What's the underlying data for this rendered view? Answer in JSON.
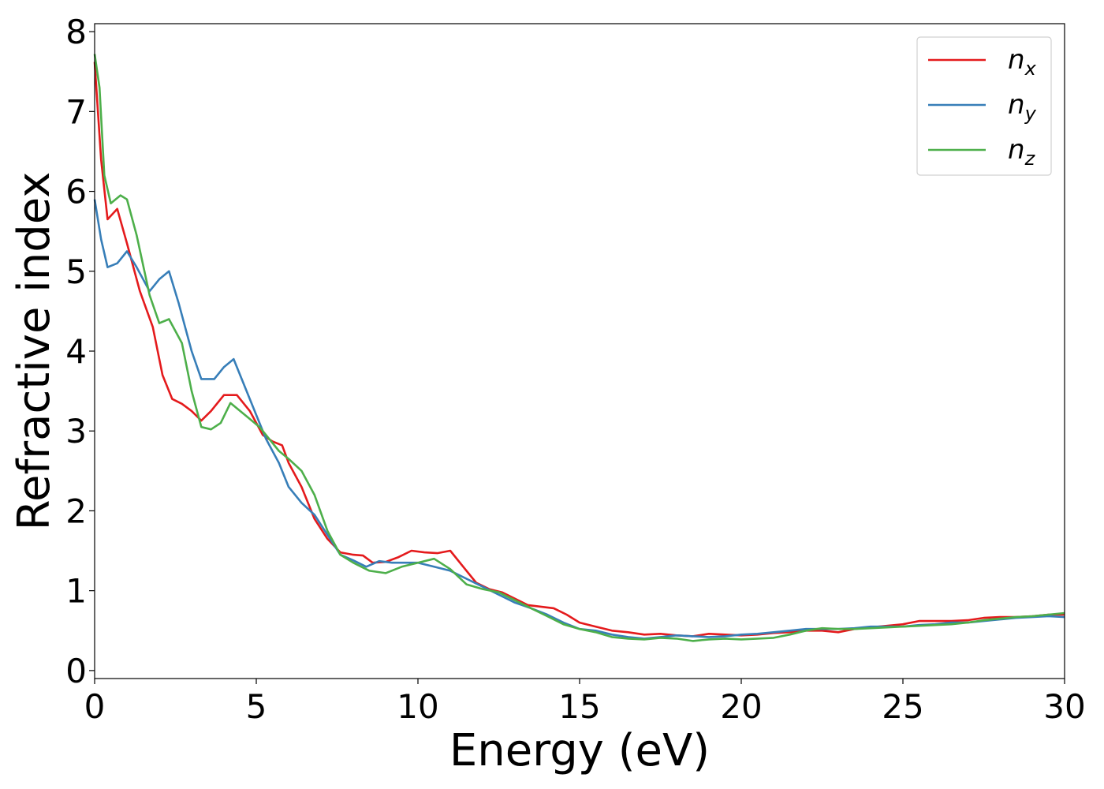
{
  "chart_data": {
    "type": "line",
    "title": "",
    "xlabel": "Energy (eV)",
    "ylabel": "Refractive index",
    "xlim": [
      0,
      30
    ],
    "ylim": [
      -0.1,
      8.1
    ],
    "xticks": [
      0,
      5,
      10,
      15,
      20,
      25,
      30
    ],
    "yticks": [
      0,
      1,
      2,
      3,
      4,
      5,
      6,
      7,
      8
    ],
    "grid": false,
    "legend_position": "top-right",
    "series": [
      {
        "name": "n_x",
        "legend_main": "n",
        "legend_sub": "x",
        "color": "#e41a1c",
        "points": [
          [
            0,
            7.62
          ],
          [
            0.2,
            6.4
          ],
          [
            0.4,
            5.65
          ],
          [
            0.7,
            5.78
          ],
          [
            1.0,
            5.35
          ],
          [
            1.4,
            4.75
          ],
          [
            1.8,
            4.3
          ],
          [
            2.1,
            3.7
          ],
          [
            2.4,
            3.4
          ],
          [
            2.7,
            3.34
          ],
          [
            3.0,
            3.25
          ],
          [
            3.3,
            3.13
          ],
          [
            3.6,
            3.25
          ],
          [
            4.0,
            3.45
          ],
          [
            4.4,
            3.45
          ],
          [
            4.8,
            3.25
          ],
          [
            5.2,
            2.95
          ],
          [
            5.5,
            2.87
          ],
          [
            5.8,
            2.82
          ],
          [
            6.0,
            2.6
          ],
          [
            6.4,
            2.3
          ],
          [
            6.8,
            1.9
          ],
          [
            7.2,
            1.65
          ],
          [
            7.6,
            1.48
          ],
          [
            8.0,
            1.45
          ],
          [
            8.3,
            1.44
          ],
          [
            8.6,
            1.35
          ],
          [
            9.0,
            1.36
          ],
          [
            9.4,
            1.42
          ],
          [
            9.8,
            1.5
          ],
          [
            10.2,
            1.48
          ],
          [
            10.6,
            1.47
          ],
          [
            11.0,
            1.5
          ],
          [
            11.4,
            1.3
          ],
          [
            11.8,
            1.1
          ],
          [
            12.2,
            1.02
          ],
          [
            12.6,
            0.98
          ],
          [
            13.0,
            0.9
          ],
          [
            13.4,
            0.82
          ],
          [
            13.8,
            0.8
          ],
          [
            14.2,
            0.78
          ],
          [
            14.6,
            0.7
          ],
          [
            15.0,
            0.6
          ],
          [
            15.5,
            0.55
          ],
          [
            16.0,
            0.5
          ],
          [
            16.5,
            0.48
          ],
          [
            17.0,
            0.45
          ],
          [
            17.5,
            0.46
          ],
          [
            18.0,
            0.44
          ],
          [
            18.5,
            0.43
          ],
          [
            19.0,
            0.46
          ],
          [
            19.5,
            0.45
          ],
          [
            20.0,
            0.44
          ],
          [
            20.5,
            0.45
          ],
          [
            21.0,
            0.47
          ],
          [
            21.5,
            0.48
          ],
          [
            22.0,
            0.5
          ],
          [
            22.5,
            0.5
          ],
          [
            23.0,
            0.48
          ],
          [
            23.5,
            0.52
          ],
          [
            24.0,
            0.54
          ],
          [
            24.5,
            0.56
          ],
          [
            25.0,
            0.58
          ],
          [
            25.5,
            0.62
          ],
          [
            26.0,
            0.62
          ],
          [
            26.5,
            0.62
          ],
          [
            27.0,
            0.63
          ],
          [
            27.5,
            0.66
          ],
          [
            28.0,
            0.67
          ],
          [
            28.5,
            0.67
          ],
          [
            29.0,
            0.68
          ],
          [
            29.5,
            0.7
          ],
          [
            30.0,
            0.7
          ]
        ]
      },
      {
        "name": "n_y",
        "legend_main": "n",
        "legend_sub": "y",
        "color": "#377eb8",
        "points": [
          [
            0,
            5.9
          ],
          [
            0.2,
            5.4
          ],
          [
            0.4,
            5.05
          ],
          [
            0.7,
            5.1
          ],
          [
            1.0,
            5.25
          ],
          [
            1.3,
            5.05
          ],
          [
            1.7,
            4.75
          ],
          [
            2.0,
            4.9
          ],
          [
            2.3,
            5.0
          ],
          [
            2.6,
            4.6
          ],
          [
            3.0,
            4.0
          ],
          [
            3.3,
            3.65
          ],
          [
            3.7,
            3.65
          ],
          [
            4.0,
            3.8
          ],
          [
            4.3,
            3.9
          ],
          [
            4.6,
            3.6
          ],
          [
            5.0,
            3.2
          ],
          [
            5.3,
            2.9
          ],
          [
            5.7,
            2.6
          ],
          [
            6.0,
            2.3
          ],
          [
            6.4,
            2.1
          ],
          [
            6.8,
            1.95
          ],
          [
            7.2,
            1.7
          ],
          [
            7.6,
            1.45
          ],
          [
            8.0,
            1.38
          ],
          [
            8.4,
            1.3
          ],
          [
            8.8,
            1.37
          ],
          [
            9.2,
            1.35
          ],
          [
            9.6,
            1.35
          ],
          [
            10.0,
            1.35
          ],
          [
            10.5,
            1.3
          ],
          [
            11.0,
            1.25
          ],
          [
            11.5,
            1.15
          ],
          [
            12.0,
            1.05
          ],
          [
            12.5,
            0.95
          ],
          [
            13.0,
            0.85
          ],
          [
            13.5,
            0.78
          ],
          [
            14.0,
            0.7
          ],
          [
            14.5,
            0.6
          ],
          [
            15.0,
            0.52
          ],
          [
            15.5,
            0.5
          ],
          [
            16.0,
            0.45
          ],
          [
            16.5,
            0.42
          ],
          [
            17.0,
            0.4
          ],
          [
            17.5,
            0.42
          ],
          [
            18.0,
            0.44
          ],
          [
            18.5,
            0.43
          ],
          [
            19.0,
            0.42
          ],
          [
            19.5,
            0.43
          ],
          [
            20.0,
            0.45
          ],
          [
            20.5,
            0.46
          ],
          [
            21.0,
            0.48
          ],
          [
            21.5,
            0.5
          ],
          [
            22.0,
            0.52
          ],
          [
            22.5,
            0.52
          ],
          [
            23.0,
            0.52
          ],
          [
            23.5,
            0.53
          ],
          [
            24.0,
            0.55
          ],
          [
            24.5,
            0.55
          ],
          [
            25.0,
            0.55
          ],
          [
            25.5,
            0.57
          ],
          [
            26.0,
            0.58
          ],
          [
            26.5,
            0.6
          ],
          [
            27.0,
            0.6
          ],
          [
            27.5,
            0.62
          ],
          [
            28.0,
            0.64
          ],
          [
            28.5,
            0.66
          ],
          [
            29.0,
            0.67
          ],
          [
            29.5,
            0.68
          ],
          [
            30.0,
            0.67
          ]
        ]
      },
      {
        "name": "n_z",
        "legend_main": "n",
        "legend_sub": "z",
        "color": "#4daf4a",
        "points": [
          [
            0,
            7.72
          ],
          [
            0.15,
            7.3
          ],
          [
            0.3,
            6.2
          ],
          [
            0.5,
            5.85
          ],
          [
            0.8,
            5.95
          ],
          [
            1.0,
            5.9
          ],
          [
            1.3,
            5.45
          ],
          [
            1.7,
            4.7
          ],
          [
            2.0,
            4.35
          ],
          [
            2.3,
            4.4
          ],
          [
            2.7,
            4.1
          ],
          [
            3.0,
            3.5
          ],
          [
            3.3,
            3.05
          ],
          [
            3.6,
            3.02
          ],
          [
            3.9,
            3.1
          ],
          [
            4.2,
            3.35
          ],
          [
            4.5,
            3.25
          ],
          [
            4.8,
            3.15
          ],
          [
            5.1,
            3.05
          ],
          [
            5.4,
            2.9
          ],
          [
            5.7,
            2.75
          ],
          [
            6.0,
            2.65
          ],
          [
            6.4,
            2.5
          ],
          [
            6.8,
            2.2
          ],
          [
            7.2,
            1.75
          ],
          [
            7.6,
            1.45
          ],
          [
            8.0,
            1.35
          ],
          [
            8.5,
            1.25
          ],
          [
            9.0,
            1.22
          ],
          [
            9.5,
            1.3
          ],
          [
            10.0,
            1.35
          ],
          [
            10.5,
            1.4
          ],
          [
            11.0,
            1.27
          ],
          [
            11.5,
            1.08
          ],
          [
            12.0,
            1.02
          ],
          [
            12.5,
            0.98
          ],
          [
            13.0,
            0.88
          ],
          [
            13.5,
            0.78
          ],
          [
            14.0,
            0.68
          ],
          [
            14.5,
            0.58
          ],
          [
            15.0,
            0.52
          ],
          [
            15.5,
            0.48
          ],
          [
            16.0,
            0.42
          ],
          [
            16.5,
            0.4
          ],
          [
            17.0,
            0.39
          ],
          [
            17.5,
            0.41
          ],
          [
            18.0,
            0.4
          ],
          [
            18.5,
            0.37
          ],
          [
            19.0,
            0.39
          ],
          [
            19.5,
            0.4
          ],
          [
            20.0,
            0.39
          ],
          [
            20.5,
            0.4
          ],
          [
            21.0,
            0.41
          ],
          [
            21.5,
            0.45
          ],
          [
            22.0,
            0.5
          ],
          [
            22.5,
            0.53
          ],
          [
            23.0,
            0.52
          ],
          [
            23.5,
            0.52
          ],
          [
            24.0,
            0.53
          ],
          [
            24.5,
            0.54
          ],
          [
            25.0,
            0.55
          ],
          [
            25.5,
            0.56
          ],
          [
            26.0,
            0.57
          ],
          [
            26.5,
            0.58
          ],
          [
            27.0,
            0.6
          ],
          [
            27.5,
            0.63
          ],
          [
            28.0,
            0.65
          ],
          [
            28.5,
            0.67
          ],
          [
            29.0,
            0.68
          ],
          [
            29.5,
            0.7
          ],
          [
            30.0,
            0.72
          ]
        ]
      }
    ]
  }
}
